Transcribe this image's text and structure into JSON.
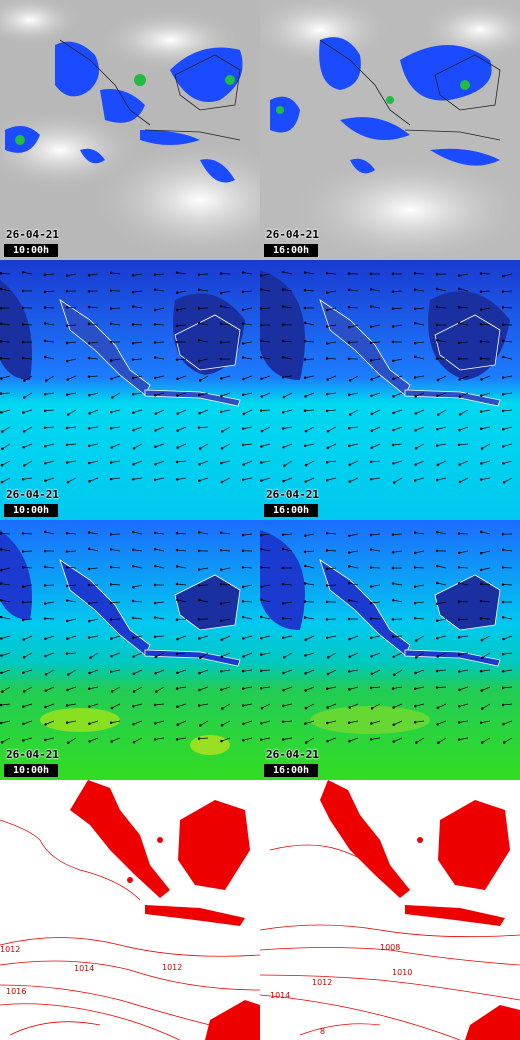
{
  "colors": {
    "cloud_bg": "#bdbdbd",
    "wind_dark": "#1a2fa0",
    "wind_mid": "#1c7cff",
    "wind_cyan": "#00e6f0",
    "wave_green": "#33dd33",
    "isobar": "#e00000",
    "land_outline": "#ffffff",
    "label_bg": "#000000"
  },
  "rows": [
    {
      "kind": "cloud",
      "panels": [
        {
          "date": "26-04-21",
          "time": "10:00h"
        },
        {
          "date": "26-04-21",
          "time": "16:00h"
        }
      ]
    },
    {
      "kind": "wind",
      "panels": [
        {
          "date": "26-04-21",
          "time": "10:00h"
        },
        {
          "date": "26-04-21",
          "time": "16:00h"
        }
      ]
    },
    {
      "kind": "wave",
      "panels": [
        {
          "date": "26-04-21",
          "time": "10:00h"
        },
        {
          "date": "26-04-21",
          "time": "16:00h"
        }
      ]
    },
    {
      "kind": "pressure",
      "panels": [
        {
          "isobar_labels": [
            "1012",
            "1014",
            "1012",
            "1016"
          ]
        },
        {
          "isobar_labels": [
            "1008",
            "1010",
            "1012",
            "1014",
            "8"
          ]
        }
      ]
    }
  ]
}
